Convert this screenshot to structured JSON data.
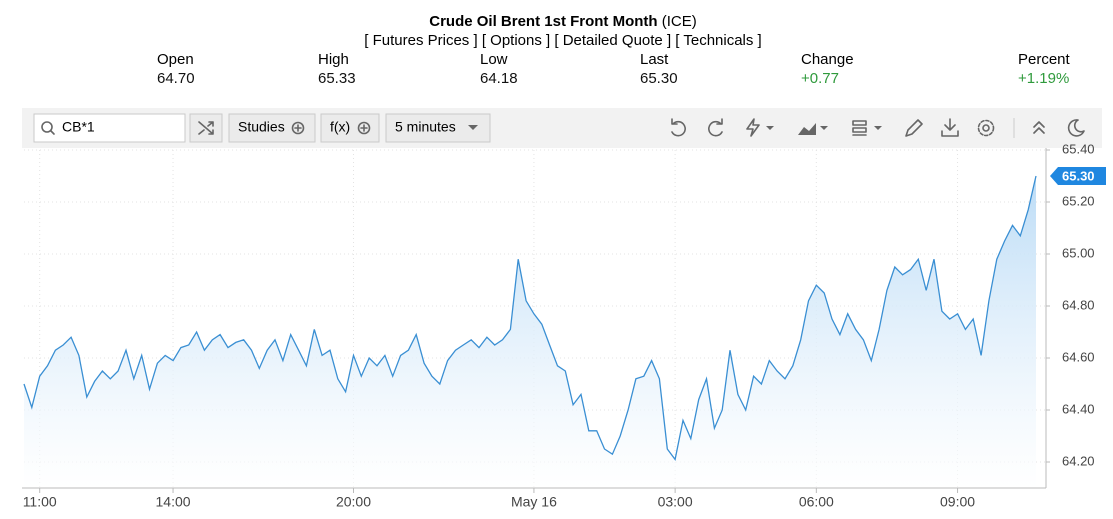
{
  "header": {
    "title": "Crude Oil Brent 1st Front Month",
    "exchange": "(ICE)",
    "links": [
      "[ Futures Prices ]",
      "[ Options ]",
      "[ Detailed Quote ]",
      "[ Technicals ]"
    ],
    "quote": [
      {
        "label": "Open",
        "value": "64.70"
      },
      {
        "label": "High",
        "value": "65.33"
      },
      {
        "label": "Low",
        "value": "64.18"
      },
      {
        "label": "Last",
        "value": "65.30"
      },
      {
        "label": "Change",
        "value": "+0.77"
      },
      {
        "label": "Percent",
        "value": "+1.19%"
      }
    ]
  },
  "toolbar": {
    "symbol": "CB*1",
    "studies": "Studies",
    "fx": "f(x)",
    "interval": "5 minutes"
  },
  "chart_data": {
    "type": "line",
    "color": "#3a8fd3",
    "values": [
      64.5,
      64.41,
      64.53,
      64.57,
      64.63,
      64.65,
      64.68,
      64.61,
      64.45,
      64.51,
      64.55,
      64.52,
      64.55,
      64.63,
      64.52,
      64.61,
      64.48,
      64.58,
      64.61,
      64.59,
      64.64,
      64.65,
      64.7,
      64.63,
      64.67,
      64.69,
      64.64,
      64.66,
      64.67,
      64.63,
      64.56,
      64.63,
      64.67,
      64.59,
      64.69,
      64.63,
      64.57,
      64.71,
      64.61,
      64.63,
      64.52,
      64.47,
      64.61,
      64.53,
      64.6,
      64.57,
      64.61,
      64.53,
      64.61,
      64.63,
      64.69,
      64.58,
      64.53,
      64.5,
      64.59,
      64.63,
      64.65,
      64.67,
      64.64,
      64.68,
      64.65,
      64.67,
      64.71,
      64.98,
      64.82,
      64.77,
      64.73,
      64.65,
      64.57,
      64.55,
      64.42,
      64.46,
      64.32,
      64.32,
      64.25,
      64.23,
      64.3,
      64.4,
      64.52,
      64.53,
      64.59,
      64.52,
      64.25,
      64.21,
      64.36,
      64.29,
      64.44,
      64.52,
      64.33,
      64.4,
      64.63,
      64.46,
      64.4,
      64.53,
      64.5,
      64.59,
      64.55,
      64.52,
      64.57,
      64.67,
      64.82,
      64.88,
      64.85,
      64.75,
      64.69,
      64.77,
      64.71,
      64.67,
      64.59,
      64.71,
      64.86,
      64.95,
      64.92,
      64.94,
      64.98,
      64.86,
      64.98,
      64.78,
      64.75,
      64.77,
      64.71,
      64.75,
      64.61,
      64.82,
      64.98,
      65.05,
      65.11,
      65.07,
      65.17,
      65.3
    ],
    "ylim": [
      64.1,
      65.4
    ],
    "yticks": [
      {
        "value": 64.2,
        "label": "64.20"
      },
      {
        "value": 64.4,
        "label": "64.40"
      },
      {
        "value": 64.6,
        "label": "64.60"
      },
      {
        "value": 64.8,
        "label": "64.80"
      },
      {
        "value": 65.0,
        "label": "65.00"
      },
      {
        "value": 65.2,
        "label": "65.20"
      },
      {
        "value": 65.4,
        "label": "65.40"
      }
    ],
    "xticks": [
      {
        "value": 2,
        "label": "11:00"
      },
      {
        "value": 19,
        "label": "14:00"
      },
      {
        "value": 42,
        "label": "20:00"
      },
      {
        "value": 65,
        "label": "May 16"
      },
      {
        "value": 83,
        "label": "03:00"
      },
      {
        "value": 101,
        "label": "06:00"
      },
      {
        "value": 119,
        "label": "09:00"
      }
    ],
    "grid": true
  }
}
